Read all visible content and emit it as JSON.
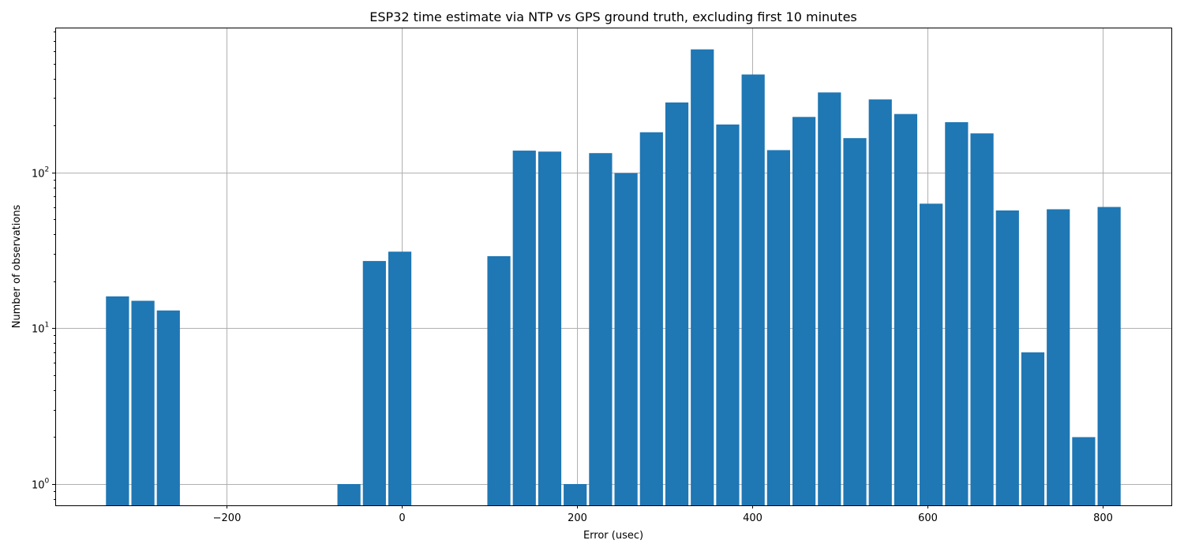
{
  "chart_data": {
    "type": "bar",
    "title": "ESP32 time estimate via NTP vs GPS ground truth, excluding first 10 minutes",
    "xlabel": "Error (usec)",
    "ylabel": "Number of observations",
    "yscale": "log",
    "xlim": [
      -395,
      878
    ],
    "ylim": [
      0.73,
      850
    ],
    "grid": true,
    "bar_color": "#1f77b4",
    "bin_width": 29,
    "bars": [
      {
        "x": -324,
        "value": 16
      },
      {
        "x": -295,
        "value": 15
      },
      {
        "x": -266,
        "value": 13
      },
      {
        "x": -60,
        "value": 1
      },
      {
        "x": -31,
        "value": 27
      },
      {
        "x": -2,
        "value": 31
      },
      {
        "x": 111,
        "value": 29
      },
      {
        "x": 140,
        "value": 138
      },
      {
        "x": 169,
        "value": 136
      },
      {
        "x": 198,
        "value": 1
      },
      {
        "x": 227,
        "value": 133
      },
      {
        "x": 256,
        "value": 99
      },
      {
        "x": 285,
        "value": 181
      },
      {
        "x": 314,
        "value": 281
      },
      {
        "x": 343,
        "value": 616
      },
      {
        "x": 372,
        "value": 203
      },
      {
        "x": 401,
        "value": 425
      },
      {
        "x": 430,
        "value": 139
      },
      {
        "x": 459,
        "value": 227
      },
      {
        "x": 488,
        "value": 326
      },
      {
        "x": 517,
        "value": 166
      },
      {
        "x": 546,
        "value": 294
      },
      {
        "x": 575,
        "value": 237
      },
      {
        "x": 604,
        "value": 63
      },
      {
        "x": 633,
        "value": 210
      },
      {
        "x": 662,
        "value": 178
      },
      {
        "x": 691,
        "value": 57
      },
      {
        "x": 720,
        "value": 7
      },
      {
        "x": 749,
        "value": 58
      },
      {
        "x": 778,
        "value": 2
      },
      {
        "x": 807,
        "value": 60
      }
    ],
    "x_ticks": [
      {
        "value": -200,
        "label": "−200"
      },
      {
        "value": 0,
        "label": "0"
      },
      {
        "value": 200,
        "label": "200"
      },
      {
        "value": 400,
        "label": "400"
      },
      {
        "value": 600,
        "label": "600"
      },
      {
        "value": 800,
        "label": "800"
      }
    ],
    "y_ticks": [
      {
        "value": 1,
        "base": "10",
        "exp": "0"
      },
      {
        "value": 10,
        "base": "10",
        "exp": "1"
      },
      {
        "value": 100,
        "base": "10",
        "exp": "2"
      }
    ]
  }
}
